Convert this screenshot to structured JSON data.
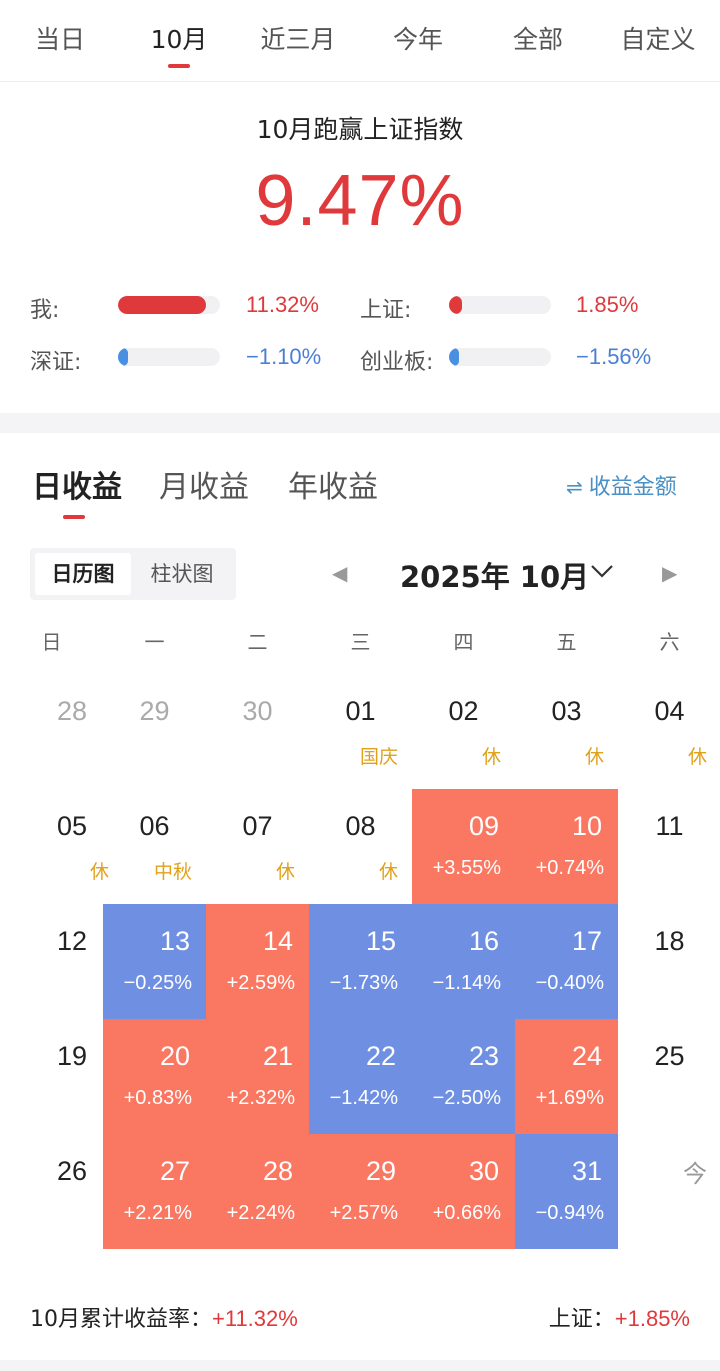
{
  "colors": {
    "accent_red": "#e0393c",
    "up_cell": "#fa7762",
    "down_cell": "#6f90e2",
    "down_text": "#4a7fd6",
    "holiday": "#e0a11c"
  },
  "top_tabs": [
    {
      "label": "当日"
    },
    {
      "label": "10月"
    },
    {
      "label": "近三月"
    },
    {
      "label": "今年"
    },
    {
      "label": "全部"
    },
    {
      "label": "自定义"
    }
  ],
  "summary": {
    "title": "10月跑赢上证指数",
    "value": "9.47%",
    "comparisons": [
      {
        "label": "我:",
        "value": "11.32%",
        "direction": "up",
        "bar_fraction": 0.86
      },
      {
        "label": "上证:",
        "value": "1.85%",
        "direction": "up",
        "bar_fraction": 0.13
      },
      {
        "label": "深证:",
        "value": "−1.10%",
        "direction": "down",
        "bar_fraction": 0.1
      },
      {
        "label": "创业板:",
        "value": "−1.56%",
        "direction": "down",
        "bar_fraction": 0.1
      }
    ]
  },
  "section_tabs": [
    {
      "label": "日收益"
    },
    {
      "label": "月收益"
    },
    {
      "label": "年收益"
    }
  ],
  "toggle_amount": {
    "icon": "swap-icon",
    "label": "收益金额"
  },
  "view_switch": [
    {
      "label": "日历图"
    },
    {
      "label": "柱状图"
    }
  ],
  "month_nav": {
    "label": "2025年 10月"
  },
  "weekdays": [
    "日",
    "一",
    "二",
    "三",
    "四",
    "五",
    "六"
  ],
  "calendar": [
    [
      {
        "day": "28",
        "kind": "grey"
      },
      {
        "day": "29",
        "kind": "grey"
      },
      {
        "day": "30",
        "kind": "grey"
      },
      {
        "day": "01",
        "kind": "normal",
        "note": "国庆"
      },
      {
        "day": "02",
        "kind": "normal",
        "note": "休"
      },
      {
        "day": "03",
        "kind": "normal",
        "note": "休"
      },
      {
        "day": "04",
        "kind": "normal",
        "note": "休"
      }
    ],
    [
      {
        "day": "05",
        "kind": "normal",
        "note": "休"
      },
      {
        "day": "06",
        "kind": "normal",
        "note": "中秋"
      },
      {
        "day": "07",
        "kind": "normal",
        "note": "休"
      },
      {
        "day": "08",
        "kind": "normal",
        "note": "休"
      },
      {
        "day": "09",
        "kind": "pos",
        "note": "+3.55%"
      },
      {
        "day": "10",
        "kind": "pos",
        "note": "+0.74%"
      },
      {
        "day": "11",
        "kind": "normal"
      }
    ],
    [
      {
        "day": "12",
        "kind": "normal"
      },
      {
        "day": "13",
        "kind": "neg",
        "note": "−0.25%"
      },
      {
        "day": "14",
        "kind": "pos",
        "note": "+2.59%"
      },
      {
        "day": "15",
        "kind": "neg",
        "note": "−1.73%"
      },
      {
        "day": "16",
        "kind": "neg",
        "note": "−1.14%"
      },
      {
        "day": "17",
        "kind": "neg",
        "note": "−0.40%"
      },
      {
        "day": "18",
        "kind": "normal"
      }
    ],
    [
      {
        "day": "19",
        "kind": "normal"
      },
      {
        "day": "20",
        "kind": "pos",
        "note": "+0.83%"
      },
      {
        "day": "21",
        "kind": "pos",
        "note": "+2.32%"
      },
      {
        "day": "22",
        "kind": "neg",
        "note": "−1.42%"
      },
      {
        "day": "23",
        "kind": "neg",
        "note": "−2.50%"
      },
      {
        "day": "24",
        "kind": "pos",
        "note": "+1.69%"
      },
      {
        "day": "25",
        "kind": "normal"
      }
    ],
    [
      {
        "day": "26",
        "kind": "normal"
      },
      {
        "day": "27",
        "kind": "pos",
        "note": "+2.21%"
      },
      {
        "day": "28",
        "kind": "pos",
        "note": "+2.24%"
      },
      {
        "day": "29",
        "kind": "pos",
        "note": "+2.57%"
      },
      {
        "day": "30",
        "kind": "pos",
        "note": "+0.66%"
      },
      {
        "day": "31",
        "kind": "neg",
        "note": "−0.94%"
      },
      {
        "day": "",
        "kind": "today",
        "note": "今"
      }
    ]
  ],
  "footer": {
    "cum_label": "10月累计收益率：",
    "cum_value": "+11.32%",
    "index_label": "上证：",
    "index_value": "+1.85%"
  }
}
